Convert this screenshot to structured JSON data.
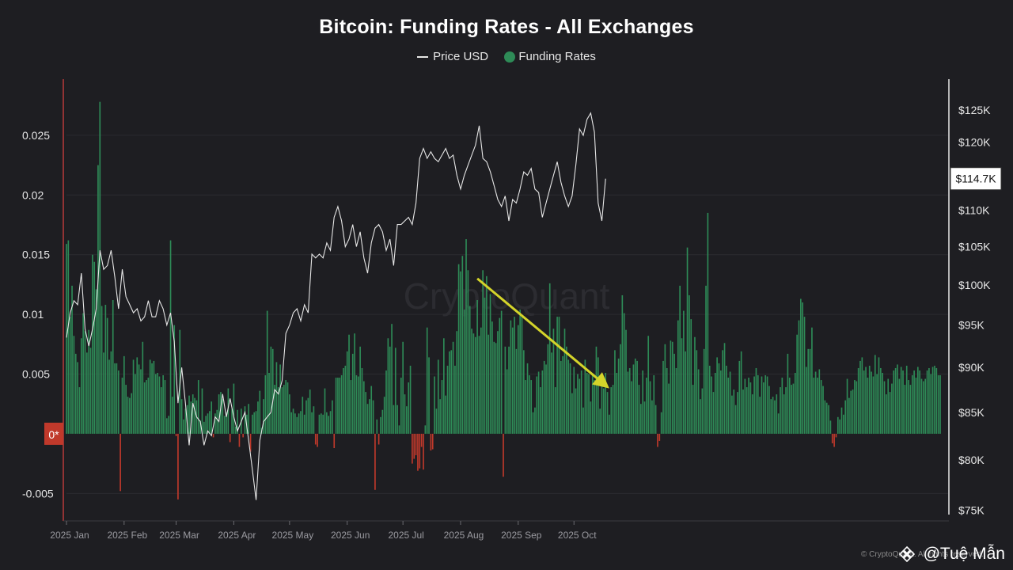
{
  "title": "Bitcoin: Funding Rates - All Exchanges",
  "legend": {
    "price_label": "Price USD",
    "funding_label": "Funding Rates"
  },
  "watermark": "CryptoQuant",
  "zero_marker": "0*",
  "current_price_label": "$114.7K",
  "copyright": "© CryptoQuant. All rights reserved.",
  "author": "@Tuệ Mẫn",
  "colors": {
    "positive": "#2e8b57",
    "negative": "#c0392b",
    "price": "#e6e6e6",
    "trend": "#d4d42a",
    "background": "#1e1e22"
  },
  "chart_data": {
    "type": "bar",
    "title": "Bitcoin: Funding Rates - All Exchanges",
    "left_axis": {
      "label": "Funding Rates",
      "min": -0.0073,
      "max": 0.0297,
      "ticks": [
        0.025,
        0.02,
        0.015,
        0.01,
        0.005,
        -0.005
      ],
      "tick_labels": [
        "0.025",
        "0.02",
        "0.015",
        "0.01",
        "0.005",
        "-0.005"
      ]
    },
    "right_axis": {
      "label": "Price USD",
      "scale": "log",
      "min": 74000,
      "max": 130000,
      "ticks": [
        125000,
        120000,
        115000,
        110000,
        105000,
        100000,
        95000,
        90000,
        85000,
        80000,
        75000
      ],
      "tick_labels": [
        "$125K",
        "$120K",
        "$115K",
        "$110K",
        "$105K",
        "$100K",
        "$95K",
        "$90K",
        "$85K",
        "$80K",
        "$75K"
      ]
    },
    "x_ticks": [
      "2025 Jan",
      "2025 Feb",
      "2025 Mar",
      "2025 Apr",
      "2025 May",
      "2025 Jun",
      "2025 Jul",
      "2025 Aug",
      "2025 Sep",
      "2025 Oct"
    ],
    "x_tick_index": [
      0,
      31,
      59,
      90,
      120,
      151,
      181,
      212,
      243,
      273
    ],
    "start_date": "2025-01-01",
    "end_date": "2025-10-21",
    "series": [
      {
        "name": "Funding Rates",
        "type": "bar",
        "values": [
          0.0159,
          0.0162,
          0.0098,
          0.0124,
          0.0082,
          0.0067,
          0.006,
          0.0039,
          0.008,
          0.0101,
          0.0086,
          0.0068,
          0.0087,
          0.0072,
          0.015,
          0.0144,
          0.0121,
          0.0225,
          0.0278,
          0.0107,
          0.0068,
          0.0108,
          0.0097,
          0.0062,
          0.0069,
          0.0112,
          0.0059,
          0.0059,
          0.0053,
          -0.0048,
          0.0047,
          0.0065,
          0.0041,
          0.0031,
          0.003,
          0.0034,
          0.0062,
          0.005,
          0.0064,
          0.0058,
          0.0054,
          0.0077,
          0.0043,
          0.0045,
          0.0047,
          0.0062,
          0.0059,
          0.0061,
          0.005,
          0.0051,
          0.0048,
          0.0039,
          0.0049,
          0.0045,
          0.0013,
          0.0015,
          0.0162,
          0.0031,
          0.0091,
          -0.0002,
          -0.0055,
          0.0087,
          0.0029,
          0.0012,
          0.0021,
          0.0024,
          0.0032,
          0.0027,
          0.0033,
          0.003,
          0.0028,
          0.0045,
          0.0011,
          0.0038,
          0.001,
          0.0015,
          0.0017,
          0.0019,
          0.0027,
          -0.0003,
          0.0017,
          0.002,
          0.0033,
          0.0035,
          0.0029,
          0.0015,
          0.0018,
          0.0038,
          -0.0007,
          0.0021,
          0.0042,
          0.0006,
          0.002,
          -0.0011,
          0.0021,
          -0.0003,
          0.0023,
          0.0016,
          0.0025,
          -0.0015,
          0.0016,
          0.0018,
          0.0019,
          0.0027,
          0.0036,
          0.0005,
          0.0029,
          0.0049,
          0.0103,
          0.0051,
          0.0073,
          0.0071,
          0.0041,
          0.006,
          0.0039,
          0.0058,
          0.0039,
          0.0041,
          0.0045,
          0.0043,
          0.0033,
          0.0018,
          0.0021,
          0.0017,
          0.0014,
          0.0017,
          0.0019,
          0.0031,
          0.0016,
          0.0028,
          0.003,
          0.0037,
          0.0018,
          0.0023,
          -0.0009,
          -0.0011,
          0.0016,
          0.0017,
          0.0016,
          0.0038,
          0.0018,
          0.0015,
          0.0019,
          0.0028,
          -0.0012,
          0.0047,
          0.0047,
          0.0047,
          0.0049,
          0.0055,
          0.0057,
          0.0069,
          0.0083,
          0.0045,
          0.0067,
          0.0084,
          0.0049,
          0.0048,
          0.0073,
          0.0055,
          0.0044,
          0.0035,
          0.0025,
          0.0029,
          0.004,
          0.0028,
          -0.0047,
          0.0012,
          -0.0009,
          0.0014,
          0.002,
          0.0031,
          0.0053,
          0.008,
          0.0073,
          0.0092,
          0.0024,
          0.0072,
          0.0024,
          0.0007,
          0.0047,
          0.0077,
          0.0033,
          0.0023,
          0.0043,
          0.0057,
          -0.0025,
          -0.0021,
          -0.0018,
          -0.0031,
          -0.0029,
          -0.0011,
          -0.003,
          0.0007,
          0.0089,
          0.0064,
          -0.0014,
          -0.0013,
          0.0048,
          0.0021,
          0.0062,
          0.0029,
          0.0045,
          0.008,
          0.0032,
          0.0057,
          0.0069,
          0.007,
          0.0077,
          0.0057,
          0.0086,
          0.0142,
          0.0136,
          0.0149,
          0.0104,
          0.0163,
          0.0137,
          0.0107,
          0.0088,
          0.0084,
          0.0081,
          0.0112,
          0.0082,
          0.0089,
          0.0137,
          0.0114,
          0.0132,
          0.0083,
          0.0117,
          0.0094,
          0.0077,
          0.0076,
          0.0086,
          0.0097,
          0.0103,
          -0.0036,
          0.0073,
          0.0054,
          0.0073,
          0.0095,
          0.0089,
          0.0098,
          0.0071,
          0.0091,
          0.0104,
          0.0098,
          0.007,
          0.0045,
          0.0059,
          0.0049,
          0.0045,
          0.0018,
          0.0022,
          0.0048,
          0.0052,
          0.0039,
          0.0053,
          0.0061,
          0.0058,
          0.0075,
          0.0126,
          0.0068,
          0.0088,
          0.0039,
          0.0098,
          0.0098,
          0.0061,
          0.0065,
          0.0088,
          0.0073,
          0.0062,
          0.0059,
          0.0034,
          0.0056,
          0.0038,
          0.005,
          0.0046,
          0.0053,
          0.0022,
          0.0062,
          0.0051,
          0.005,
          0.0027,
          0.005,
          0.0045,
          0.0073,
          0.0064,
          0.0021,
          0.0044,
          0.0038,
          0.0051,
          0.0035,
          0.0016,
          0.0039,
          0.0041,
          0.007,
          0.0051,
          0.0063,
          0.0075,
          0.0116,
          0.0101,
          0.0087,
          0.0052,
          0.0055,
          0.0044,
          0.0058,
          0.0063,
          0.0061,
          0.0041,
          0.0025,
          0.0053,
          0.0027,
          0.0047,
          0.0082,
          0.0044,
          0.0028,
          0.0049,
          0.0024,
          -0.0011,
          -0.0006,
          0.0018,
          0.0061,
          0.0075,
          0.0055,
          0.0042,
          0.0078,
          0.0077,
          0.0067,
          0.0055,
          0.0095,
          0.0124,
          0.008,
          0.0103,
          0.0069,
          0.0156,
          0.0116,
          0.0096,
          0.0041,
          0.0081,
          0.007,
          0.0054,
          0.0029,
          0.0038,
          0.0071,
          0.0124,
          0.0185,
          0.0057,
          0.0048,
          0.0035,
          0.0051,
          0.0064,
          0.0059,
          0.0053,
          0.007,
          0.0076,
          0.0057,
          0.0047,
          0.0052,
          0.0032,
          0.0037,
          0.0024,
          0.0035,
          0.0061,
          0.0069,
          0.0037,
          0.0046,
          0.0039,
          0.0047,
          0.0043,
          0.0033,
          0.0048,
          0.0055,
          0.0049,
          0.0031,
          0.0048,
          0.0043,
          0.0049,
          0.0048,
          0.004,
          0.0029,
          0.0031,
          0.0028,
          0.0033,
          0.0017,
          0.0039,
          0.0047,
          0.0033,
          0.0039,
          0.0067,
          0.0047,
          0.0041,
          0.0042,
          0.0051,
          0.0083,
          0.0095,
          0.0113,
          0.011,
          0.0098,
          0.0056,
          0.0071,
          0.0071,
          0.0089,
          0.0047,
          0.0052,
          0.0047,
          0.0054,
          0.0045,
          0.004,
          0.0028,
          0.0026,
          0.0024,
          0.0011,
          -0.0008,
          -0.0011,
          -0.0003,
          0.0014,
          0.0012,
          0.0022,
          0.0016,
          0.0028,
          0.0046,
          0.003,
          0.0036,
          0.0037,
          0.0045,
          0.0044,
          0.0055,
          0.0061,
          0.0064,
          0.0053,
          0.0056,
          0.0047,
          0.0057,
          0.0052,
          0.0048,
          0.0066,
          0.005,
          0.0064,
          0.0055,
          0.0051,
          0.0044,
          0.0033,
          0.0046,
          0.0035,
          0.0042,
          0.0053,
          0.0055,
          0.0058,
          0.0046,
          0.0056,
          0.0053,
          0.0041,
          0.0057,
          0.0045,
          0.0041,
          0.0049,
          0.0053,
          0.0047,
          0.0056,
          0.0053,
          0.0046,
          0.0044,
          0.0046,
          0.0053,
          0.0055,
          0.005,
          0.0056,
          0.0057,
          0.0055,
          0.0049,
          0.0049
        ]
      },
      {
        "name": "Price USD",
        "type": "line",
        "points": [
          [
            0,
            93500
          ],
          [
            2,
            96500
          ],
          [
            4,
            98000
          ],
          [
            6,
            97500
          ],
          [
            8,
            101500
          ],
          [
            10,
            94500
          ],
          [
            12,
            92500
          ],
          [
            14,
            94500
          ],
          [
            16,
            97000
          ],
          [
            18,
            104500
          ],
          [
            20,
            102000
          ],
          [
            22,
            102500
          ],
          [
            24,
            104500
          ],
          [
            26,
            101000
          ],
          [
            28,
            97000
          ],
          [
            30,
            102000
          ],
          [
            32,
            98500
          ],
          [
            34,
            97500
          ],
          [
            36,
            96500
          ],
          [
            38,
            97000
          ],
          [
            40,
            95500
          ],
          [
            42,
            96000
          ],
          [
            44,
            98000
          ],
          [
            46,
            96000
          ],
          [
            48,
            96000
          ],
          [
            50,
            98000
          ],
          [
            52,
            97000
          ],
          [
            54,
            95000
          ],
          [
            56,
            96500
          ],
          [
            58,
            93000
          ],
          [
            60,
            86000
          ],
          [
            62,
            90000
          ],
          [
            64,
            86000
          ],
          [
            66,
            81500
          ],
          [
            68,
            86000
          ],
          [
            70,
            84500
          ],
          [
            72,
            84000
          ],
          [
            74,
            81500
          ],
          [
            76,
            83000
          ],
          [
            78,
            82500
          ],
          [
            80,
            84500
          ],
          [
            82,
            84000
          ],
          [
            84,
            87000
          ],
          [
            86,
            84500
          ],
          [
            88,
            86500
          ],
          [
            90,
            84500
          ],
          [
            92,
            83000
          ],
          [
            94,
            84000
          ],
          [
            96,
            85000
          ],
          [
            98,
            82000
          ],
          [
            100,
            79000
          ],
          [
            102,
            76000
          ],
          [
            104,
            82000
          ],
          [
            106,
            84000
          ],
          [
            108,
            84500
          ],
          [
            110,
            85000
          ],
          [
            112,
            87500
          ],
          [
            114,
            87000
          ],
          [
            116,
            88500
          ],
          [
            118,
            94000
          ],
          [
            120,
            95000
          ],
          [
            122,
            96500
          ],
          [
            124,
            97000
          ],
          [
            126,
            95500
          ],
          [
            128,
            97500
          ],
          [
            130,
            96500
          ],
          [
            132,
            104000
          ],
          [
            134,
            103500
          ],
          [
            136,
            104000
          ],
          [
            138,
            103500
          ],
          [
            140,
            105500
          ],
          [
            142,
            104500
          ],
          [
            144,
            109000
          ],
          [
            146,
            110500
          ],
          [
            148,
            108500
          ],
          [
            150,
            105000
          ],
          [
            152,
            106000
          ],
          [
            154,
            108000
          ],
          [
            156,
            105000
          ],
          [
            158,
            107000
          ],
          [
            160,
            103500
          ],
          [
            162,
            101500
          ],
          [
            164,
            105500
          ],
          [
            166,
            107500
          ],
          [
            168,
            108000
          ],
          [
            170,
            107000
          ],
          [
            172,
            104500
          ],
          [
            174,
            106000
          ],
          [
            176,
            102500
          ],
          [
            178,
            108000
          ],
          [
            180,
            108000
          ],
          [
            182,
            108500
          ],
          [
            184,
            109000
          ],
          [
            186,
            108000
          ],
          [
            188,
            111000
          ],
          [
            190,
            117500
          ],
          [
            192,
            119000
          ],
          [
            194,
            117500
          ],
          [
            196,
            118500
          ],
          [
            198,
            117500
          ],
          [
            200,
            117000
          ],
          [
            202,
            118000
          ],
          [
            204,
            119000
          ],
          [
            206,
            117500
          ],
          [
            208,
            118000
          ],
          [
            210,
            115000
          ],
          [
            212,
            113000
          ],
          [
            214,
            115000
          ],
          [
            216,
            116500
          ],
          [
            218,
            118000
          ],
          [
            220,
            119500
          ],
          [
            222,
            122500
          ],
          [
            224,
            117500
          ],
          [
            226,
            117000
          ],
          [
            228,
            115500
          ],
          [
            230,
            113500
          ],
          [
            232,
            111500
          ],
          [
            234,
            110500
          ],
          [
            236,
            112000
          ],
          [
            238,
            108500
          ],
          [
            240,
            111500
          ],
          [
            242,
            111000
          ],
          [
            244,
            113000
          ],
          [
            246,
            115500
          ],
          [
            248,
            115000
          ],
          [
            250,
            116000
          ],
          [
            252,
            113000
          ],
          [
            254,
            112500
          ],
          [
            256,
            109000
          ],
          [
            258,
            111000
          ],
          [
            260,
            113000
          ],
          [
            262,
            115000
          ],
          [
            264,
            117000
          ],
          [
            266,
            114000
          ],
          [
            268,
            112000
          ],
          [
            270,
            110500
          ],
          [
            272,
            112000
          ],
          [
            274,
            116500
          ],
          [
            276,
            122000
          ],
          [
            278,
            121000
          ],
          [
            280,
            123500
          ],
          [
            282,
            124500
          ],
          [
            284,
            121500
          ],
          [
            286,
            111000
          ],
          [
            288,
            108500
          ],
          [
            290,
            114500
          ]
        ]
      }
    ],
    "annotation": {
      "type": "trend-arrow",
      "from": [
        221,
        0.013
      ],
      "to": [
        292,
        0.0038
      ]
    }
  }
}
